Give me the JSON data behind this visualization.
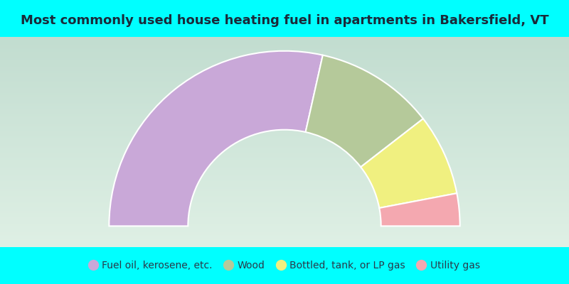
{
  "title": "Most commonly used house heating fuel in apartments in Bakersfield, VT",
  "title_fontsize": 13,
  "background_color": "#00FFFF",
  "segments": [
    {
      "label": "Fuel oil, kerosene, etc.",
      "value": 57,
      "color": "#c9a8d8"
    },
    {
      "label": "Wood",
      "value": 22,
      "color": "#b5c99a"
    },
    {
      "label": "Bottled, tank, or LP gas",
      "value": 15,
      "color": "#f0f080"
    },
    {
      "label": "Utility gas",
      "value": 6,
      "color": "#f4a8b0"
    }
  ],
  "legend_text_color": "#2a3a4a",
  "legend_fontsize": 10,
  "grad_top_color": "#dff0e5",
  "grad_bottom_color": "#c2ddd0",
  "title_strip_color": "#00FFFF",
  "legend_strip_color": "#00FFFF",
  "title_color": "#1a2a3a",
  "r_outer": 1.0,
  "r_inner": 0.55
}
